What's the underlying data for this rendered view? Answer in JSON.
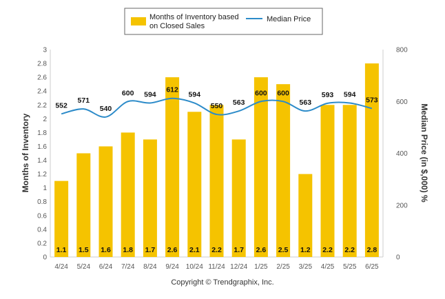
{
  "chart_data": {
    "type": "bar",
    "categories": [
      "4/24",
      "5/24",
      "6/24",
      "7/24",
      "8/24",
      "9/24",
      "10/24",
      "11/24",
      "12/24",
      "1/25",
      "2/25",
      "3/25",
      "4/25",
      "5/25",
      "6/25"
    ],
    "series": [
      {
        "name": "Months of Inventory based on Closed Sales",
        "type": "bar",
        "axis": "left",
        "values": [
          1.1,
          1.5,
          1.6,
          1.8,
          1.7,
          2.6,
          2.1,
          2.2,
          1.7,
          2.6,
          2.5,
          1.2,
          2.2,
          2.2,
          2.8
        ],
        "labels": [
          "1.1",
          "1.5",
          "1.6",
          "1.8",
          "1.7",
          "2.6",
          "2.1",
          "2.2",
          "1.7",
          "2.6",
          "2.5",
          "1.2",
          "2.2",
          "2.2",
          "2.8"
        ],
        "color": "#F5C300"
      },
      {
        "name": "Median Price",
        "type": "line",
        "axis": "right",
        "values": [
          552,
          571,
          540,
          600,
          594,
          612,
          594,
          550,
          563,
          600,
          600,
          563,
          593,
          594,
          573
        ],
        "labels": [
          "552",
          "571",
          "540",
          "600",
          "594",
          "612",
          "594",
          "550",
          "563",
          "600",
          "600",
          "563",
          "593",
          "594",
          "573"
        ],
        "color": "#2C8BC9"
      }
    ],
    "legend": {
      "position": "top-center",
      "bar_label_lines": [
        "Months of Inventory based",
        "on Closed Sales"
      ],
      "line_label": "Median Price"
    },
    "y_left": {
      "label": "Months of Inventory",
      "min": 0,
      "max": 3,
      "step": 0.2,
      "ticks": [
        "0",
        "0.2",
        "0.4",
        "0.6",
        "0.8",
        "1",
        "1.2",
        "1.4",
        "1.6",
        "1.8",
        "2",
        "2.2",
        "2.4",
        "2.6",
        "2.8",
        "3"
      ]
    },
    "y_right": {
      "label": "Median Price (in $,000) %",
      "min": 0,
      "max": 800,
      "step": 200,
      "ticks": [
        "0",
        "200",
        "400",
        "600",
        "800"
      ]
    },
    "grid": false,
    "copyright": "Copyright © Trendgraphix, Inc."
  }
}
